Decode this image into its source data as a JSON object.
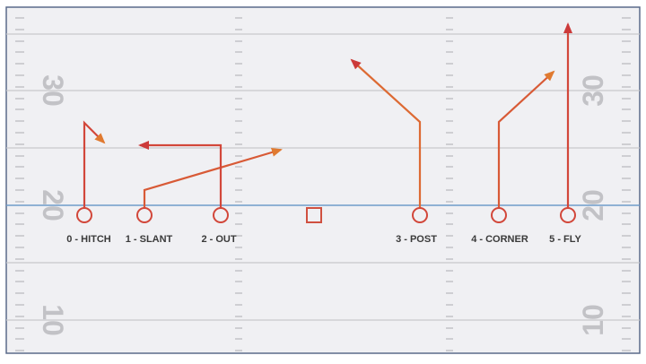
{
  "field": {
    "background": "#f0f0f3",
    "border_color": "#5a6a8a",
    "yard_line_color": "#c8c8cc",
    "line_of_scrimmage_color": "#6f9cc9",
    "hash_color": "#b8b8bc",
    "yard_numbers": {
      "n30": "30",
      "n20": "20",
      "n10": "10"
    }
  },
  "center_marker": {
    "shape": "square",
    "color": "#d05040"
  },
  "routes": [
    {
      "id": "hitch",
      "label": "0 - HITCH",
      "color_start": "#cc3a3a",
      "color_end": "#e07a30"
    },
    {
      "id": "slant",
      "label": "1 - SLANT",
      "color_start": "#cc3a3a",
      "color_end": "#e07a30"
    },
    {
      "id": "out",
      "label": "2 - OUT",
      "color_start": "#e07a30",
      "color_end": "#cc3a3a"
    },
    {
      "id": "post",
      "label": "3 - POST",
      "color_start": "#e08a30",
      "color_end": "#cc3a3a"
    },
    {
      "id": "corner",
      "label": "4 - CORNER",
      "color_start": "#cc3a3a",
      "color_end": "#e07a30"
    },
    {
      "id": "fly",
      "label": "5 - FLY",
      "color_start": "#cc3a3a",
      "color_end": "#d84040"
    }
  ]
}
